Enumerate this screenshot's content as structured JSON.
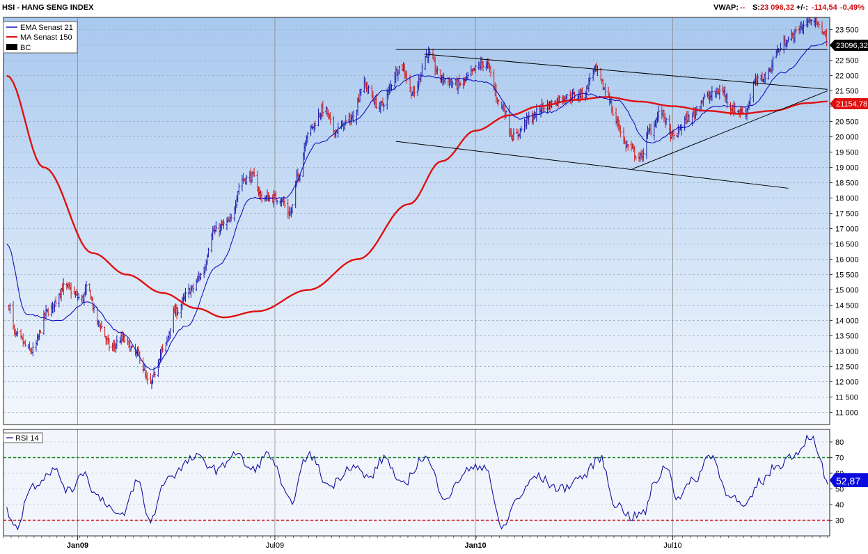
{
  "header": {
    "title": "HSI - HANG SENG INDEX",
    "vwap_label": "VWAP:",
    "vwap_value": "--",
    "s_label": "S:",
    "s_value": "23 096,32",
    "change_label": "+/-:",
    "change_value": "-114,54",
    "change_pct": "-0,49%"
  },
  "legend": {
    "items": [
      {
        "label": "EMA  Senast 21",
        "color": "#1010c0"
      },
      {
        "label": "MA  Senast 150",
        "color": "#e01010"
      },
      {
        "label": "BC",
        "color": "#000000"
      }
    ]
  },
  "price_badges": {
    "last": "23096,32",
    "ma": "21154,78"
  },
  "rsi_panel": {
    "label": "RSI  14",
    "value_badge": "52,87"
  },
  "colors": {
    "bg_top": "#a8c8ee",
    "bg_bottom": "#f4f8fd",
    "up_bar": "#1a1ab0",
    "down_bar": "#d01818",
    "ema": "#1010c0",
    "ma": "#e01010",
    "rsi_line": "#1010a0",
    "rsi_upper": "#0a8a0a",
    "rsi_lower": "#d01010",
    "badge_last": "#000000",
    "badge_ma": "#e01010",
    "badge_rsi": "#0a0ae0"
  },
  "chart_data": [
    {
      "type": "bar",
      "subtype": "ohlc",
      "y_axis": {
        "min": 10600,
        "max": 23900,
        "ticks": [
          "11 000",
          "11 500",
          "12 000",
          "12 500",
          "13 000",
          "13 500",
          "14 000",
          "14 500",
          "15 000",
          "15 500",
          "16 000",
          "16 500",
          "17 000",
          "17 500",
          "18 000",
          "18 500",
          "19 000",
          "19 500",
          "20 000",
          "20 500",
          "21 000",
          "21 500",
          "22 000",
          "22 500",
          "23 000",
          "23 500"
        ]
      },
      "x_axis": {
        "ticks": [
          "Jan09",
          "Jul09",
          "Jan10",
          "Jul10"
        ],
        "bold_ticks": [
          "Jan09",
          "Jan10"
        ]
      },
      "grid": true,
      "legend_position": "top-left",
      "price_keypoints": [
        [
          "2008-10-30",
          14500
        ],
        [
          "2008-11-05",
          13500
        ],
        [
          "2008-11-20",
          13000
        ],
        [
          "2008-12-05",
          14300
        ],
        [
          "2008-12-20",
          15100
        ],
        [
          "2009-01-05",
          14700
        ],
        [
          "2009-01-10",
          15050
        ],
        [
          "2009-01-20",
          13900
        ],
        [
          "2009-02-01",
          13100
        ],
        [
          "2009-02-10",
          13400
        ],
        [
          "2009-02-25",
          12900
        ],
        [
          "2009-03-08",
          11900
        ],
        [
          "2009-03-20",
          13000
        ],
        [
          "2009-04-01",
          14300
        ],
        [
          "2009-04-15",
          15000
        ],
        [
          "2009-04-25",
          15500
        ],
        [
          "2009-05-05",
          16900
        ],
        [
          "2009-05-20",
          17200
        ],
        [
          "2009-06-01",
          18600
        ],
        [
          "2009-06-10",
          18700
        ],
        [
          "2009-06-20",
          18000
        ],
        [
          "2009-07-05",
          18000
        ],
        [
          "2009-07-15",
          17500
        ],
        [
          "2009-07-22",
          18700
        ],
        [
          "2009-08-01",
          20200
        ],
        [
          "2009-08-15",
          20900
        ],
        [
          "2009-08-25",
          20200
        ],
        [
          "2009-09-10",
          20600
        ],
        [
          "2009-09-20",
          21700
        ],
        [
          "2009-10-05",
          21000
        ],
        [
          "2009-10-25",
          22300
        ],
        [
          "2009-11-05",
          21400
        ],
        [
          "2009-11-18",
          22700
        ],
        [
          "2009-12-01",
          21900
        ],
        [
          "2009-12-15",
          21700
        ],
        [
          "2010-01-10",
          22400
        ],
        [
          "2010-01-25",
          21000
        ],
        [
          "2010-02-05",
          20000
        ],
        [
          "2010-02-20",
          20600
        ],
        [
          "2010-03-05",
          21000
        ],
        [
          "2010-03-25",
          21300
        ],
        [
          "2010-04-10",
          21400
        ],
        [
          "2010-04-20",
          22200
        ],
        [
          "2010-05-01",
          21500
        ],
        [
          "2010-05-10",
          20500
        ],
        [
          "2010-05-20",
          19700
        ],
        [
          "2010-06-01",
          19300
        ],
        [
          "2010-06-10",
          20200
        ],
        [
          "2010-06-20",
          20800
        ],
        [
          "2010-07-01",
          20000
        ],
        [
          "2010-07-15",
          20600
        ],
        [
          "2010-08-01",
          21300
        ],
        [
          "2010-08-15",
          21500
        ],
        [
          "2010-08-25",
          20900
        ],
        [
          "2010-09-05",
          20800
        ],
        [
          "2010-09-15",
          21800
        ],
        [
          "2010-09-25",
          22000
        ],
        [
          "2010-10-05",
          22800
        ],
        [
          "2010-10-15",
          23200
        ],
        [
          "2010-10-28",
          23600
        ],
        [
          "2010-11-05",
          23900
        ],
        [
          "2010-11-15",
          23500
        ],
        [
          "2010-11-20",
          23096
        ]
      ],
      "ma150_keypoints": [
        [
          "2008-10-28",
          22000
        ],
        [
          "2008-12-01",
          19000
        ],
        [
          "2009-01-15",
          16200
        ],
        [
          "2009-02-15",
          15500
        ],
        [
          "2009-03-20",
          14900
        ],
        [
          "2009-04-20",
          14400
        ],
        [
          "2009-05-15",
          14100
        ],
        [
          "2009-06-15",
          14300
        ],
        [
          "2009-08-01",
          15000
        ],
        [
          "2009-09-15",
          16000
        ],
        [
          "2009-11-01",
          17800
        ],
        [
          "2009-12-01",
          19200
        ],
        [
          "2010-01-01",
          20200
        ],
        [
          "2010-02-01",
          20700
        ],
        [
          "2010-03-01",
          21000
        ],
        [
          "2010-04-01",
          21200
        ],
        [
          "2010-05-01",
          21300
        ],
        [
          "2010-06-01",
          21150
        ],
        [
          "2010-07-01",
          21000
        ],
        [
          "2010-08-01",
          20850
        ],
        [
          "2010-09-01",
          20750
        ],
        [
          "2010-10-01",
          20850
        ],
        [
          "2010-11-01",
          21100
        ],
        [
          "2010-11-20",
          21154.78
        ]
      ],
      "ema21_keypoints": [
        [
          "2008-10-28",
          16500
        ],
        [
          "2008-11-15",
          14200
        ],
        [
          "2008-12-15",
          14000
        ],
        [
          "2009-01-10",
          14600
        ],
        [
          "2009-02-10",
          13600
        ],
        [
          "2009-03-10",
          12400
        ],
        [
          "2009-04-10",
          13800
        ],
        [
          "2009-05-10",
          15800
        ],
        [
          "2009-06-10",
          18000
        ],
        [
          "2009-07-10",
          18000
        ],
        [
          "2009-08-10",
          19800
        ],
        [
          "2009-09-10",
          20500
        ],
        [
          "2009-10-10",
          21500
        ],
        [
          "2009-11-10",
          22000
        ],
        [
          "2009-12-10",
          21900
        ],
        [
          "2010-01-10",
          21800
        ],
        [
          "2010-02-10",
          20600
        ],
        [
          "2010-03-10",
          20800
        ],
        [
          "2010-04-10",
          21400
        ],
        [
          "2010-05-10",
          21200
        ],
        [
          "2010-06-10",
          19800
        ],
        [
          "2010-07-10",
          20300
        ],
        [
          "2010-08-10",
          21000
        ],
        [
          "2010-09-10",
          21000
        ],
        [
          "2010-10-10",
          22100
        ],
        [
          "2010-11-10",
          23000
        ],
        [
          "2010-11-20",
          23100
        ]
      ],
      "trendlines": [
        [
          [
            "2009-10-20",
            22850
          ],
          [
            "2010-11-20",
            22850
          ]
        ],
        [
          [
            "2009-11-15",
            22700
          ],
          [
            "2010-11-20",
            21550
          ]
        ],
        [
          [
            "2009-10-20",
            19850
          ],
          [
            "2010-10-15",
            18320
          ]
        ],
        [
          [
            "2010-05-25",
            18950
          ],
          [
            "2010-11-20",
            21500
          ]
        ]
      ]
    },
    {
      "type": "line",
      "name": "RSI  14",
      "y_axis": {
        "min": 20,
        "max": 88,
        "ticks": [
          "30",
          "40",
          "50",
          "60",
          "70",
          "80"
        ]
      },
      "reference_lines": [
        30,
        70
      ],
      "keypoints": [
        [
          "2008-10-28",
          36
        ],
        [
          "2008-11-05",
          25
        ],
        [
          "2008-11-20",
          52
        ],
        [
          "2008-12-10",
          62
        ],
        [
          "2008-12-25",
          48
        ],
        [
          "2009-01-05",
          61
        ],
        [
          "2009-01-20",
          45
        ],
        [
          "2009-02-10",
          32
        ],
        [
          "2009-02-25",
          55
        ],
        [
          "2009-03-08",
          30
        ],
        [
          "2009-03-25",
          58
        ],
        [
          "2009-04-20",
          70
        ],
        [
          "2009-05-10",
          62
        ],
        [
          "2009-05-25",
          73
        ],
        [
          "2009-06-10",
          62
        ],
        [
          "2009-06-25",
          72
        ],
        [
          "2009-07-15",
          42
        ],
        [
          "2009-08-01",
          72
        ],
        [
          "2009-08-20",
          52
        ],
        [
          "2009-09-10",
          65
        ],
        [
          "2009-09-25",
          57
        ],
        [
          "2009-10-10",
          70
        ],
        [
          "2009-10-25",
          52
        ],
        [
          "2009-11-15",
          70
        ],
        [
          "2009-12-05",
          45
        ],
        [
          "2009-12-25",
          62
        ],
        [
          "2010-01-10",
          65
        ],
        [
          "2010-01-25",
          25
        ],
        [
          "2010-02-10",
          45
        ],
        [
          "2010-02-25",
          58
        ],
        [
          "2010-03-20",
          50
        ],
        [
          "2010-04-10",
          58
        ],
        [
          "2010-04-25",
          70
        ],
        [
          "2010-05-10",
          40
        ],
        [
          "2010-05-25",
          32
        ],
        [
          "2010-06-05",
          35
        ],
        [
          "2010-06-15",
          55
        ],
        [
          "2010-06-25",
          65
        ],
        [
          "2010-07-05",
          45
        ],
        [
          "2010-07-20",
          55
        ],
        [
          "2010-08-05",
          72
        ],
        [
          "2010-08-20",
          48
        ],
        [
          "2010-09-05",
          38
        ],
        [
          "2010-09-20",
          55
        ],
        [
          "2010-10-05",
          65
        ],
        [
          "2010-10-20",
          72
        ],
        [
          "2010-11-05",
          84
        ],
        [
          "2010-11-12",
          70
        ],
        [
          "2010-11-20",
          52.87
        ]
      ]
    }
  ]
}
